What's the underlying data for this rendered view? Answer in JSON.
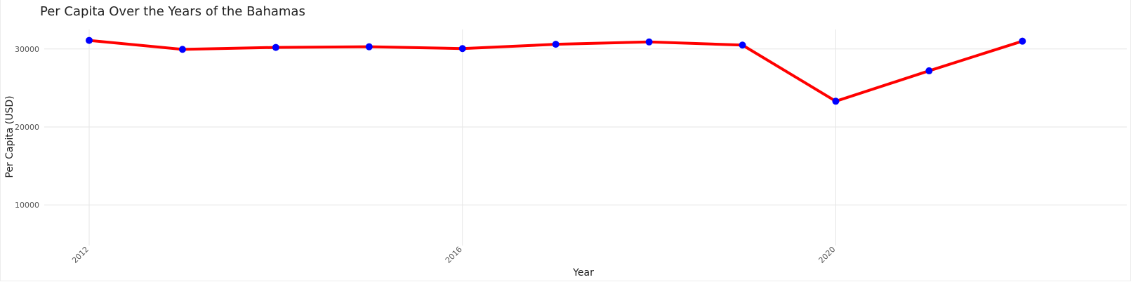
{
  "chart_data": {
    "type": "line",
    "title": "Per Capita Over the Years of the Bahamas",
    "xlabel": "Year",
    "ylabel": "Per Capita (USD)",
    "x": [
      2012,
      2013,
      2014,
      2015,
      2016,
      2017,
      2018,
      2019,
      2020,
      2021,
      2022
    ],
    "series": [
      {
        "values": [
          31100,
          29950,
          30200,
          30280,
          30050,
          30600,
          30900,
          30500,
          23300,
          27200,
          31000
        ]
      }
    ],
    "xticks": [
      "2012",
      "2016",
      "2020"
    ],
    "yticks": [
      "10000",
      "20000",
      "30000"
    ],
    "xlim": [
      2012,
      2023.6
    ],
    "ylim": [
      4800,
      32500
    ],
    "grid": true,
    "colors": {
      "line": "#ff0000",
      "marker": "#0000ff",
      "grid": "#e6e6e6"
    }
  }
}
